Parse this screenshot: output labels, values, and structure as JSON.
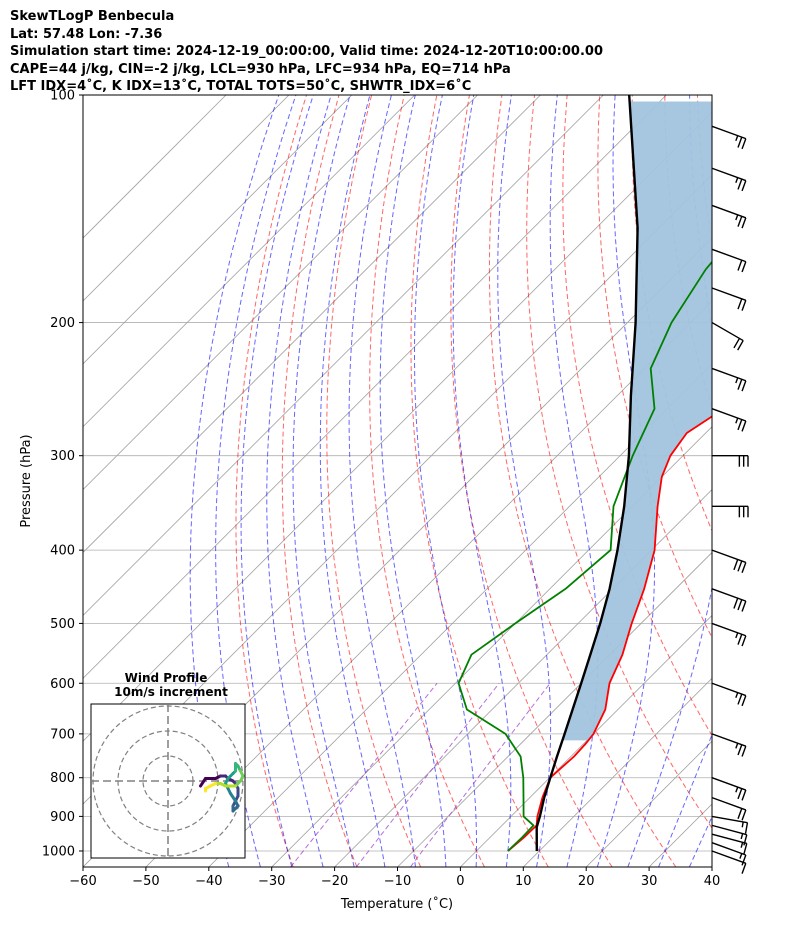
{
  "header": {
    "line1": "SkewTLogP Benbecula",
    "line2": "Lat: 57.48   Lon: -7.36",
    "line3": "Simulation start time: 2024-12-19_00:00:00, Valid time: 2024-12-20T10:00:00.00",
    "line4": "CAPE=44 j/kg, CIN=-2 j/kg, LCL=930 hPa, LFC=934 hPa, EQ=714 hPa",
    "line5": "LFT IDX=4˚C, K IDX=13˚C, TOTAL TOTS=50˚C, SHWTR_IDX=6˚C"
  },
  "chart_data": {
    "type": "line",
    "subtype": "skew-T log-P diagram",
    "xlabel": "Temperature (˚C)",
    "ylabel": "Pressure (hPa)",
    "xlim": [
      -60,
      40
    ],
    "ylim": [
      1050,
      100
    ],
    "y_scale": "log",
    "x_ticks": [
      "−60",
      "−50",
      "−40",
      "−30",
      "−20",
      "−10",
      "0",
      "10",
      "20",
      "30",
      "40"
    ],
    "x_tick_values": [
      -60,
      -50,
      -40,
      -30,
      -20,
      -10,
      0,
      10,
      20,
      30,
      40
    ],
    "y_ticks": [
      1000,
      900,
      800,
      700,
      600,
      500,
      400,
      300,
      200,
      100
    ],
    "grid": true,
    "colors": {
      "temperature": "#ff0000",
      "dewpoint": "#008000",
      "parcel": "#000000",
      "cape_fill": "#a2c4de",
      "dry_adiabat": "#ff0000",
      "moist_adiabat": "#0000ff",
      "mixing_ratio": "#9932cc",
      "isotherm": "#808080"
    },
    "series": [
      {
        "name": "temperature",
        "points": [
          [
            1000,
            5.0
          ],
          [
            960,
            5.4
          ],
          [
            925,
            5.5
          ],
          [
            900,
            4.2
          ],
          [
            850,
            2.0
          ],
          [
            800,
            0.1
          ],
          [
            750,
            0.5
          ],
          [
            720,
            0.3
          ],
          [
            700,
            0.0
          ],
          [
            650,
            -2.0
          ],
          [
            600,
            -5.5
          ],
          [
            550,
            -8.0
          ],
          [
            500,
            -11.5
          ],
          [
            450,
            -15.0
          ],
          [
            400,
            -19.5
          ],
          [
            350,
            -26.0
          ],
          [
            320,
            -30.0
          ],
          [
            300,
            -32.0
          ],
          [
            280,
            -33.0
          ],
          [
            260,
            -31.0
          ],
          [
            230,
            -27.0
          ],
          [
            200,
            -25.0
          ],
          [
            160,
            -22.0
          ],
          [
            130,
            -18.5
          ],
          [
            110,
            -15.5
          ],
          [
            100,
            -14.5
          ]
        ]
      },
      {
        "name": "dewpoint",
        "points": [
          [
            1000,
            5.0
          ],
          [
            960,
            5.1
          ],
          [
            925,
            5.0
          ],
          [
            900,
            2.0
          ],
          [
            850,
            -1.0
          ],
          [
            800,
            -4.2
          ],
          [
            750,
            -8.0
          ],
          [
            700,
            -14.0
          ],
          [
            650,
            -24.0
          ],
          [
            600,
            -29.5
          ],
          [
            550,
            -32.0
          ],
          [
            500,
            -30.0
          ],
          [
            450,
            -27.5
          ],
          [
            400,
            -26.5
          ],
          [
            350,
            -33.0
          ],
          [
            300,
            -38.0
          ],
          [
            260,
            -42.0
          ],
          [
            230,
            -49.0
          ],
          [
            200,
            -53.0
          ],
          [
            170,
            -56.0
          ],
          [
            150,
            -57.0
          ],
          [
            120,
            -56.0
          ],
          [
            100,
            -56.0
          ]
        ]
      },
      {
        "name": "parcel",
        "points": [
          [
            1000,
            9.6
          ],
          [
            930,
            5.8
          ],
          [
            900,
            4.6
          ],
          [
            850,
            2.3
          ],
          [
            800,
            0.1
          ],
          [
            750,
            -2.2
          ],
          [
            700,
            -4.6
          ],
          [
            650,
            -7.2
          ],
          [
            600,
            -10.0
          ],
          [
            550,
            -13.1
          ],
          [
            500,
            -16.5
          ],
          [
            450,
            -20.5
          ],
          [
            400,
            -25.4
          ],
          [
            350,
            -31.3
          ],
          [
            300,
            -38.6
          ],
          [
            250,
            -47.8
          ],
          [
            200,
            -58.7
          ],
          [
            150,
            -73.4
          ],
          [
            100,
            -95.9
          ]
        ]
      }
    ],
    "cape_region": "shaded between parcel and temperature from 934 hPa (LFC) to 714 hPa (EQ) and above",
    "wind_barbs": [
      {
        "p": 1000,
        "speed_kt": 10,
        "dir_deg": 290
      },
      {
        "p": 975,
        "speed_kt": 15,
        "dir_deg": 290
      },
      {
        "p": 950,
        "speed_kt": 15,
        "dir_deg": 285
      },
      {
        "p": 925,
        "speed_kt": 15,
        "dir_deg": 285
      },
      {
        "p": 900,
        "speed_kt": 15,
        "dir_deg": 280
      },
      {
        "p": 850,
        "speed_kt": 20,
        "dir_deg": 290
      },
      {
        "p": 800,
        "speed_kt": 25,
        "dir_deg": 290
      },
      {
        "p": 700,
        "speed_kt": 25,
        "dir_deg": 290
      },
      {
        "p": 600,
        "speed_kt": 25,
        "dir_deg": 290
      },
      {
        "p": 500,
        "speed_kt": 25,
        "dir_deg": 290
      },
      {
        "p": 450,
        "speed_kt": 30,
        "dir_deg": 290
      },
      {
        "p": 400,
        "speed_kt": 30,
        "dir_deg": 290
      },
      {
        "p": 350,
        "speed_kt": 30,
        "dir_deg": 270
      },
      {
        "p": 300,
        "speed_kt": 30,
        "dir_deg": 270
      },
      {
        "p": 260,
        "speed_kt": 25,
        "dir_deg": 290
      },
      {
        "p": 230,
        "speed_kt": 25,
        "dir_deg": 290
      },
      {
        "p": 200,
        "speed_kt": 20,
        "dir_deg": 300
      },
      {
        "p": 180,
        "speed_kt": 20,
        "dir_deg": 290
      },
      {
        "p": 160,
        "speed_kt": 20,
        "dir_deg": 290
      },
      {
        "p": 140,
        "speed_kt": 25,
        "dir_deg": 290
      },
      {
        "p": 125,
        "speed_kt": 25,
        "dir_deg": 290
      },
      {
        "p": 110,
        "speed_kt": 25,
        "dir_deg": 290
      }
    ],
    "inset": {
      "title_line1": "Wind Profile",
      "title_line2": "10m/s increment",
      "rings_ms": [
        10,
        20,
        30
      ],
      "hodograph_uv_ms": [
        [
          13,
          -2
        ],
        [
          15,
          1
        ],
        [
          17,
          1
        ],
        [
          19,
          1
        ],
        [
          21,
          2
        ],
        [
          23,
          2
        ],
        [
          24,
          1
        ],
        [
          26,
          0
        ],
        [
          27,
          -1
        ],
        [
          28,
          -3
        ],
        [
          28,
          -6
        ],
        [
          27,
          -8
        ],
        [
          26,
          -10
        ],
        [
          26,
          -12
        ],
        [
          27,
          -11
        ],
        [
          28,
          -10
        ],
        [
          27,
          -8
        ],
        [
          25,
          -5
        ],
        [
          24,
          -3
        ],
        [
          23,
          -1
        ],
        [
          24,
          1
        ],
        [
          25,
          2
        ],
        [
          26,
          3
        ],
        [
          27,
          4
        ],
        [
          27,
          6
        ],
        [
          27,
          7
        ],
        [
          28,
          6
        ],
        [
          29,
          4
        ],
        [
          30,
          2
        ],
        [
          29,
          0
        ],
        [
          28,
          -1
        ],
        [
          27,
          -2
        ],
        [
          25,
          -2
        ],
        [
          23,
          -2
        ],
        [
          21,
          -1
        ],
        [
          19,
          -1
        ],
        [
          17,
          -2
        ],
        [
          15,
          -3
        ],
        [
          15,
          -4
        ]
      ]
    }
  }
}
